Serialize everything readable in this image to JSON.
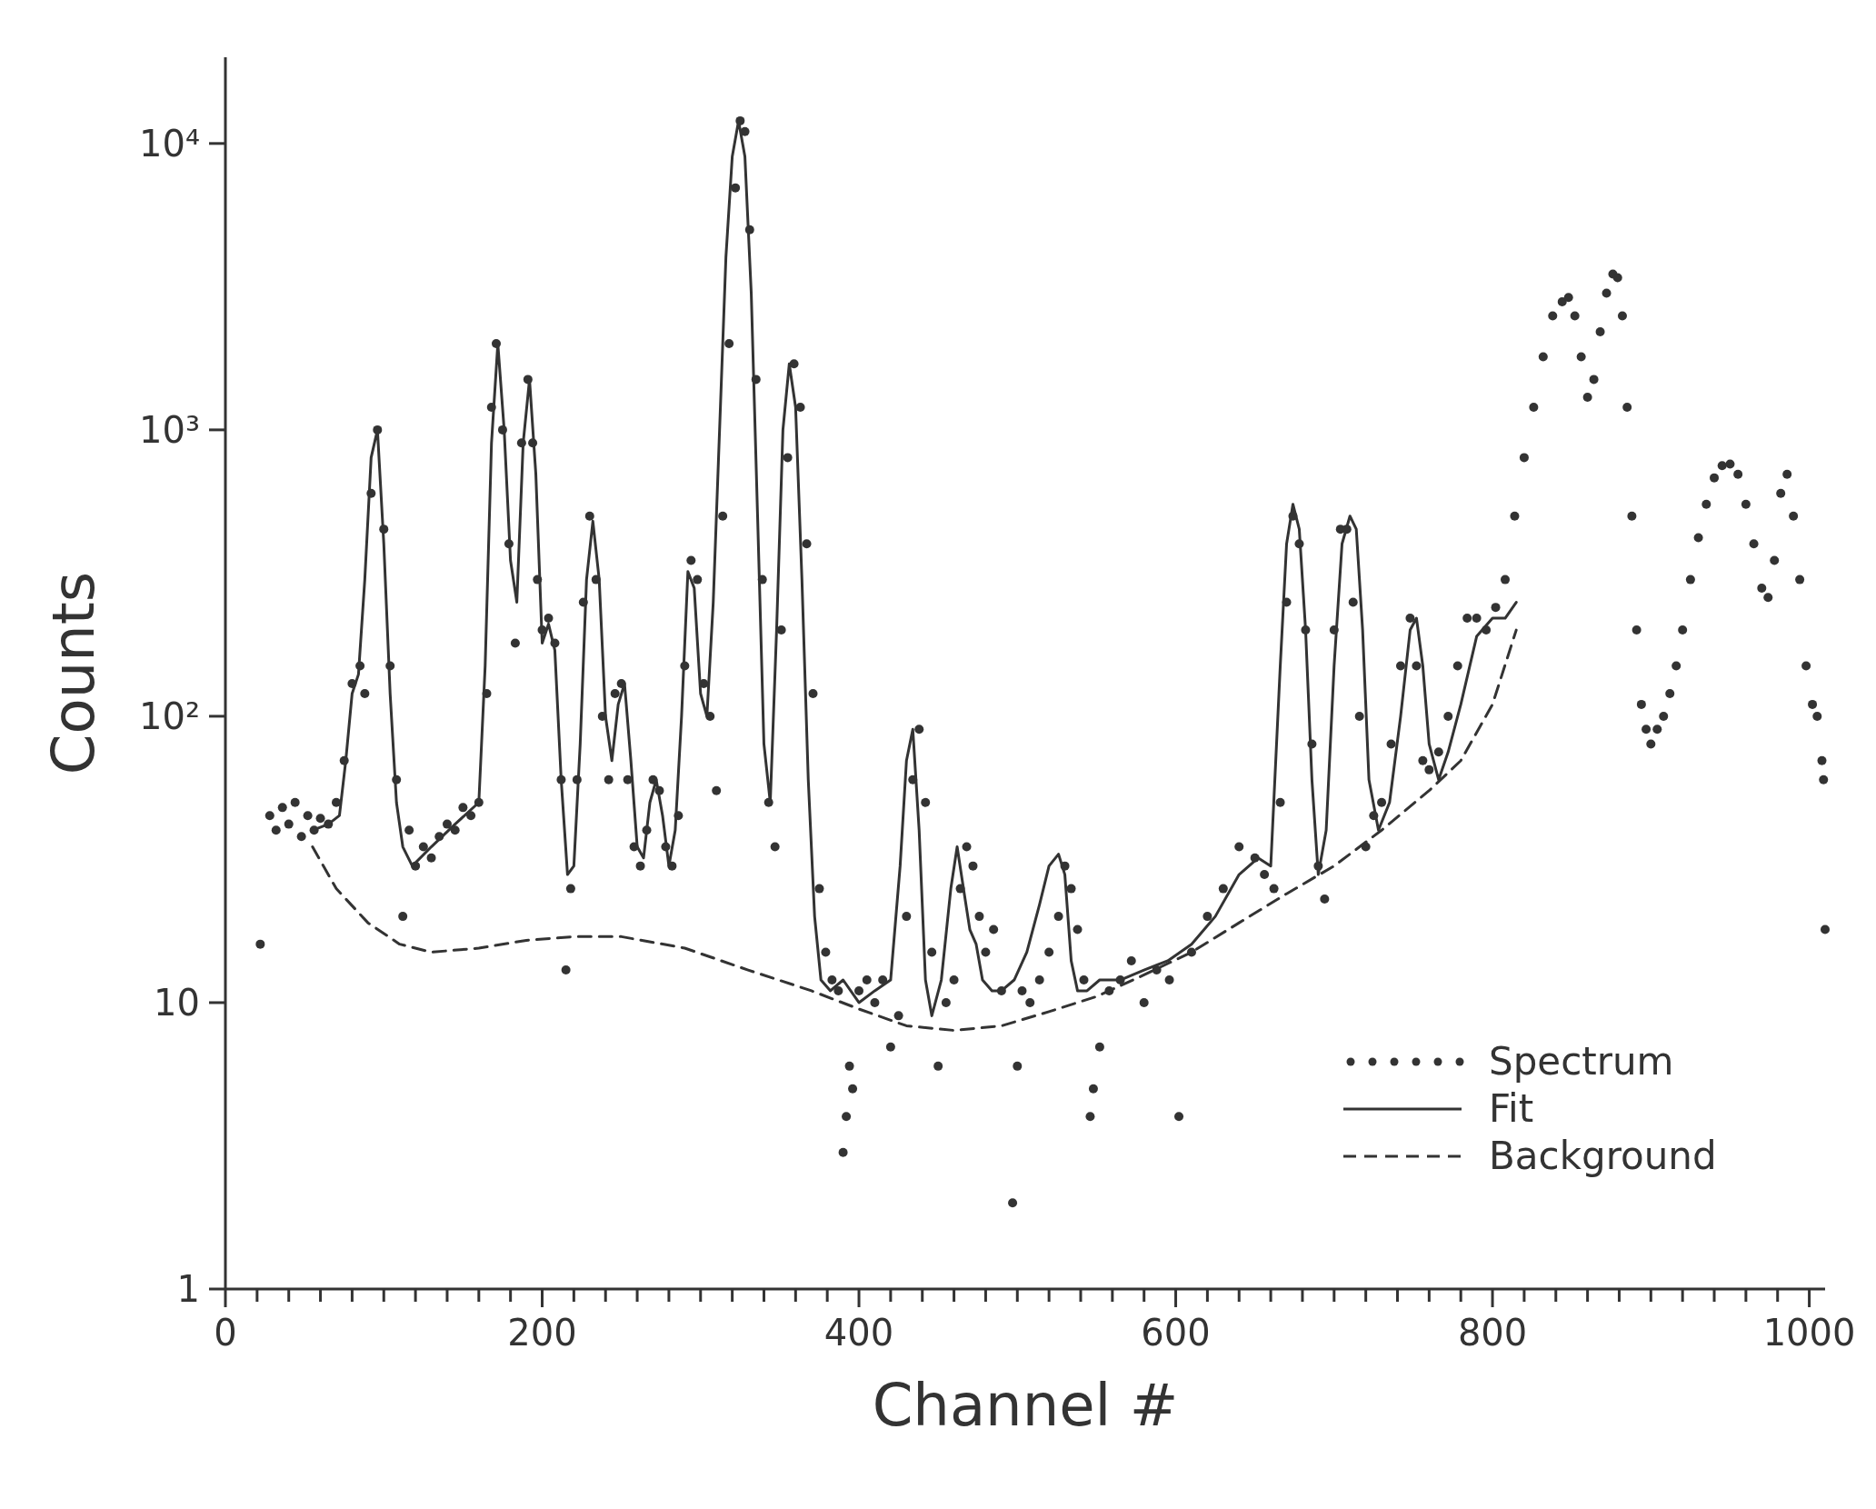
{
  "chart_data": {
    "type": "line",
    "xlabel": "Channel #",
    "ylabel": "Counts",
    "log": "y",
    "grid": false,
    "legend": "bottom right",
    "xlim": [
      0,
      1010
    ],
    "ylim": [
      1,
      20000
    ],
    "xticks": [
      0,
      {
        "value": 20,
        "label": null
      },
      {
        "value": 40,
        "label": null
      },
      {
        "value": 60,
        "label": null
      },
      {
        "value": 80,
        "label": null
      },
      {
        "value": 100,
        "label": null
      },
      {
        "value": 120,
        "label": null
      },
      {
        "value": 140,
        "label": null
      },
      {
        "value": 160,
        "label": null
      },
      {
        "value": 180,
        "label": null
      },
      200,
      {
        "value": 220,
        "label": null
      },
      {
        "value": 240,
        "label": null
      },
      {
        "value": 260,
        "label": null
      },
      {
        "value": 280,
        "label": null
      },
      {
        "value": 300,
        "label": null
      },
      {
        "value": 320,
        "label": null
      },
      {
        "value": 340,
        "label": null
      },
      {
        "value": 360,
        "label": null
      },
      {
        "value": 380,
        "label": null
      },
      400,
      {
        "value": 420,
        "label": null
      },
      {
        "value": 440,
        "label": null
      },
      {
        "value": 460,
        "label": null
      },
      {
        "value": 480,
        "label": null
      },
      {
        "value": 500,
        "label": null
      },
      {
        "value": 520,
        "label": null
      },
      {
        "value": 540,
        "label": null
      },
      {
        "value": 560,
        "label": null
      },
      {
        "value": 580,
        "label": null
      },
      600,
      {
        "value": 620,
        "label": null
      },
      {
        "value": 640,
        "label": null
      },
      {
        "value": 660,
        "label": null
      },
      {
        "value": 680,
        "label": null
      },
      {
        "value": 700,
        "label": null
      },
      {
        "value": 720,
        "label": null
      },
      {
        "value": 740,
        "label": null
      },
      {
        "value": 760,
        "label": null
      },
      {
        "value": 780,
        "label": null
      },
      800,
      {
        "value": 820,
        "label": null
      },
      {
        "value": 840,
        "label": null
      },
      {
        "value": 860,
        "label": null
      },
      {
        "value": 880,
        "label": null
      },
      {
        "value": 900,
        "label": null
      },
      {
        "value": 920,
        "label": null
      },
      {
        "value": 940,
        "label": null
      },
      {
        "value": 960,
        "label": null
      },
      {
        "value": 980,
        "label": null
      },
      1000
    ],
    "yticks": [
      1,
      10,
      {
        "value": 100,
        "label": "10²"
      },
      {
        "value": 1000,
        "label": "10³"
      },
      {
        "value": 10000,
        "label": "10⁴"
      }
    ],
    "series": [
      {
        "name": "Spectrum",
        "type": "scatter",
        "marker": "circle",
        "color": "#333333",
        "x": [
          22,
          28,
          32,
          36,
          40,
          44,
          48,
          52,
          56,
          60,
          65,
          70,
          75,
          80,
          85,
          88,
          92,
          96,
          100,
          104,
          108,
          112,
          116,
          120,
          125,
          130,
          135,
          140,
          145,
          150,
          155,
          160,
          165,
          168,
          171,
          175,
          179,
          183,
          187,
          191,
          194,
          197,
          200,
          204,
          208,
          212,
          215,
          218,
          222,
          226,
          230,
          234,
          238,
          242,
          246,
          250,
          254,
          258,
          262,
          266,
          270,
          274,
          278,
          282,
          286,
          290,
          294,
          298,
          302,
          306,
          310,
          314,
          318,
          322,
          325,
          328,
          331,
          335,
          339,
          343,
          347,
          351,
          355,
          359,
          363,
          367,
          371,
          375,
          379,
          383,
          387,
          390,
          392,
          394,
          396,
          400,
          405,
          410,
          415,
          420,
          425,
          430,
          434,
          438,
          442,
          446,
          450,
          455,
          460,
          464,
          468,
          472,
          476,
          480,
          485,
          490,
          497,
          500,
          503,
          508,
          514,
          520,
          526,
          530,
          534,
          538,
          542,
          546,
          548,
          552,
          558,
          565,
          572,
          580,
          588,
          596,
          602,
          610,
          620,
          630,
          640,
          650,
          656,
          662,
          666,
          670,
          674,
          678,
          682,
          686,
          690,
          694,
          700,
          704,
          708,
          712,
          716,
          720,
          725,
          730,
          736,
          742,
          748,
          752,
          756,
          760,
          766,
          772,
          778,
          784,
          790,
          796,
          802,
          808,
          814,
          820,
          826,
          832,
          838,
          844,
          848,
          852,
          856,
          860,
          864,
          868,
          872,
          876,
          879,
          882,
          885,
          888,
          891,
          894,
          897,
          900,
          904,
          908,
          912,
          916,
          920,
          925,
          930,
          935,
          940,
          945,
          950,
          955,
          960,
          965,
          970,
          974,
          978,
          982,
          986,
          990,
          994,
          998,
          1002,
          1005,
          1008,
          1009,
          1010
        ],
        "values": [
          16,
          45,
          40,
          48,
          42,
          50,
          38,
          45,
          40,
          44,
          42,
          50,
          70,
          130,
          150,
          120,
          600,
          1000,
          450,
          150,
          60,
          20,
          40,
          30,
          35,
          32,
          38,
          42,
          40,
          48,
          45,
          50,
          120,
          1200,
          2000,
          1000,
          400,
          180,
          900,
          1500,
          900,
          300,
          200,
          220,
          180,
          60,
          13,
          25,
          60,
          250,
          500,
          300,
          100,
          60,
          120,
          130,
          60,
          35,
          30,
          40,
          60,
          55,
          35,
          30,
          45,
          150,
          350,
          300,
          130,
          100,
          55,
          500,
          2000,
          7000,
          12000,
          11000,
          5000,
          1500,
          300,
          50,
          35,
          200,
          800,
          1700,
          1200,
          400,
          120,
          25,
          15,
          12,
          11,
          3,
          4,
          6,
          5,
          11,
          12,
          10,
          12,
          7,
          9,
          20,
          60,
          90,
          50,
          15,
          6,
          10,
          12,
          25,
          35,
          30,
          20,
          15,
          18,
          11,
          2,
          6,
          11,
          10,
          12,
          15,
          20,
          30,
          25,
          18,
          12,
          4,
          5,
          7,
          11,
          12,
          14,
          10,
          13,
          12,
          4,
          15,
          20,
          25,
          35,
          32,
          28,
          25,
          50,
          250,
          500,
          400,
          200,
          80,
          30,
          23,
          200,
          450,
          450,
          250,
          100,
          35,
          45,
          50,
          80,
          150,
          220,
          150,
          70,
          65,
          75,
          100,
          150,
          220,
          220,
          200,
          240,
          300,
          500,
          800,
          1200,
          1800,
          2500,
          2800,
          2900,
          2500,
          1800,
          1300,
          1500,
          2200,
          3000,
          3500,
          3400,
          2500,
          1200,
          500,
          200,
          110,
          90,
          80,
          90,
          100,
          120,
          150,
          200,
          300,
          420,
          550,
          680,
          750,
          760,
          700,
          550,
          400,
          280,
          260,
          350,
          600,
          700,
          500,
          300,
          150,
          110,
          100,
          70,
          60,
          18
        ]
      },
      {
        "name": "Fit",
        "line_style": "solid",
        "color": "#333333",
        "x": [
          55,
          65,
          72,
          76,
          80,
          84,
          88,
          92,
          96,
          100,
          104,
          108,
          112,
          118,
          130,
          145,
          160,
          164,
          168,
          172,
          176,
          180,
          184,
          188,
          192,
          196,
          200,
          204,
          208,
          212,
          216,
          220,
          224,
          228,
          232,
          236,
          240,
          244,
          248,
          252,
          256,
          260,
          264,
          268,
          272,
          276,
          280,
          284,
          288,
          292,
          296,
          300,
          304,
          308,
          312,
          316,
          320,
          324,
          328,
          332,
          336,
          340,
          344,
          348,
          352,
          356,
          360,
          364,
          368,
          372,
          376,
          382,
          390,
          400,
          410,
          420,
          426,
          430,
          434,
          438,
          442,
          446,
          452,
          458,
          462,
          466,
          470,
          474,
          478,
          484,
          490,
          498,
          506,
          514,
          520,
          526,
          530,
          534,
          538,
          544,
          552,
          565,
          580,
          595,
          610,
          625,
          640,
          652,
          660,
          666,
          670,
          674,
          678,
          682,
          686,
          690,
          695,
          700,
          705,
          710,
          714,
          718,
          722,
          728,
          735,
          742,
          748,
          752,
          756,
          760,
          766,
          772,
          780,
          790,
          800,
          808,
          815
        ],
        "values": [
          40,
          42,
          45,
          70,
          120,
          140,
          300,
          800,
          1000,
          400,
          120,
          50,
          35,
          30,
          35,
          42,
          50,
          150,
          900,
          2000,
          1000,
          350,
          250,
          900,
          1500,
          700,
          180,
          210,
          170,
          60,
          28,
          30,
          80,
          300,
          480,
          300,
          100,
          70,
          110,
          130,
          70,
          35,
          32,
          50,
          60,
          45,
          30,
          40,
          100,
          320,
          280,
          120,
          100,
          250,
          1000,
          4000,
          9000,
          12000,
          9000,
          3000,
          500,
          80,
          50,
          200,
          1000,
          1700,
          1200,
          300,
          60,
          20,
          12,
          11,
          12,
          10,
          11,
          12,
          30,
          70,
          90,
          40,
          12,
          9,
          12,
          25,
          35,
          25,
          18,
          16,
          12,
          11,
          11,
          12,
          15,
          22,
          30,
          33,
          28,
          14,
          11,
          11,
          12,
          12,
          13,
          14,
          16,
          20,
          28,
          32,
          30,
          150,
          400,
          550,
          450,
          200,
          60,
          28,
          40,
          150,
          400,
          500,
          450,
          200,
          60,
          40,
          50,
          100,
          200,
          220,
          150,
          80,
          60,
          75,
          110,
          190,
          220,
          220,
          250
        ]
      },
      {
        "name": "Background",
        "line_style": "dashed",
        "color": "#333333",
        "x": [
          55,
          70,
          90,
          110,
          130,
          160,
          190,
          220,
          250,
          290,
          330,
          370,
          400,
          430,
          460,
          490,
          520,
          550,
          580,
          610,
          640,
          670,
          700,
          730,
          760,
          780,
          800,
          815
        ],
        "values": [
          35,
          25,
          19,
          16,
          15,
          15.5,
          16.5,
          17,
          17,
          15.5,
          13,
          11,
          9.5,
          8.3,
          8,
          8.3,
          9.3,
          10.5,
          12.5,
          15,
          19,
          24,
          30,
          40,
          55,
          70,
          110,
          200
        ]
      }
    ]
  }
}
